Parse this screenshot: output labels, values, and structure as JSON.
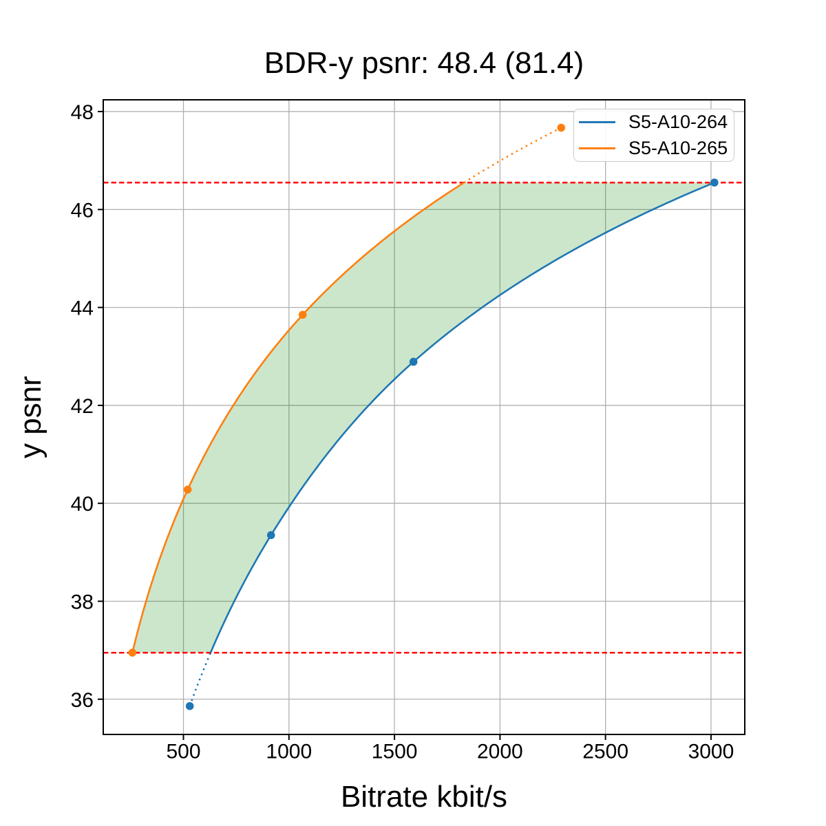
{
  "chart_data": {
    "type": "line",
    "title": "BDR-y psnr: 48.4 (81.4)",
    "xlabel": "Bitrate kbit/s",
    "ylabel": "y psnr",
    "xlim": [
      120,
      3160
    ],
    "ylim": [
      35.28,
      48.24
    ],
    "xticks": [
      500,
      1000,
      1500,
      2000,
      2500,
      3000
    ],
    "yticks": [
      36,
      38,
      40,
      42,
      44,
      46,
      48
    ],
    "grid": true,
    "grid_color": "#b0b0b0",
    "legend_position": "upper right",
    "series": [
      {
        "name": "S5-A10-264",
        "color": "#1f77b4",
        "x": [
          530,
          915,
          1590,
          3016
        ],
        "y": [
          35.86,
          39.35,
          42.89,
          46.55
        ]
      },
      {
        "name": "S5-A10-265",
        "color": "#ff7f0e",
        "x": [
          258,
          520,
          1065,
          2290
        ],
        "y": [
          36.95,
          40.28,
          43.85,
          47.67
        ]
      }
    ],
    "bd_interval": [
      36.95,
      46.55
    ],
    "hlines": {
      "values": [
        36.95,
        46.55
      ],
      "color": "#ff0000",
      "style": "dashed"
    },
    "fill_between": {
      "upper": "S5-A10-265",
      "lower": "S5-A10-264",
      "color": "#008000",
      "alpha": 0.2
    }
  },
  "legend": {
    "items": [
      {
        "label": "S5-A10-264",
        "color": "#1f77b4"
      },
      {
        "label": "S5-A10-265",
        "color": "#ff7f0e"
      }
    ]
  }
}
